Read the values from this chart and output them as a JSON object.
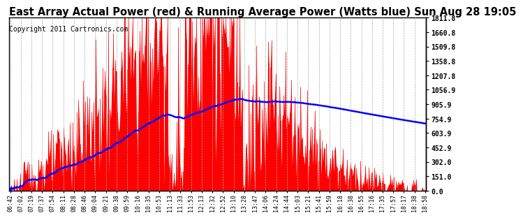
{
  "title": "East Array Actual Power (red) & Running Average Power (Watts blue) Sun Aug 28 19:05",
  "copyright": "Copyright 2011 Cartronics.com",
  "ylabel_right_values": [
    1811.8,
    1660.8,
    1509.8,
    1358.8,
    1207.8,
    1056.9,
    905.9,
    754.9,
    603.9,
    452.9,
    302.0,
    151.0,
    0.0
  ],
  "ymax": 1811.8,
  "ymin": 0.0,
  "bar_color": "#ff0000",
  "avg_color": "#0000ff",
  "bg_color": "#ffffff",
  "grid_color": "#aaaaaa",
  "title_fontsize": 10.5,
  "copyright_fontsize": 7,
  "tick_fontsize": 6.0,
  "x_tick_labels": [
    "06:42",
    "07:02",
    "07:19",
    "07:37",
    "07:54",
    "08:11",
    "08:28",
    "08:46",
    "09:04",
    "09:21",
    "09:38",
    "09:59",
    "10:16",
    "10:35",
    "10:53",
    "11:13",
    "11:33",
    "11:53",
    "12:13",
    "12:32",
    "12:52",
    "13:10",
    "13:28",
    "13:47",
    "14:06",
    "14:24",
    "14:44",
    "15:03",
    "15:21",
    "15:41",
    "15:59",
    "16:18",
    "16:38",
    "16:55",
    "17:16",
    "17:35",
    "17:57",
    "18:17",
    "18:38",
    "18:58"
  ],
  "num_points": 500
}
